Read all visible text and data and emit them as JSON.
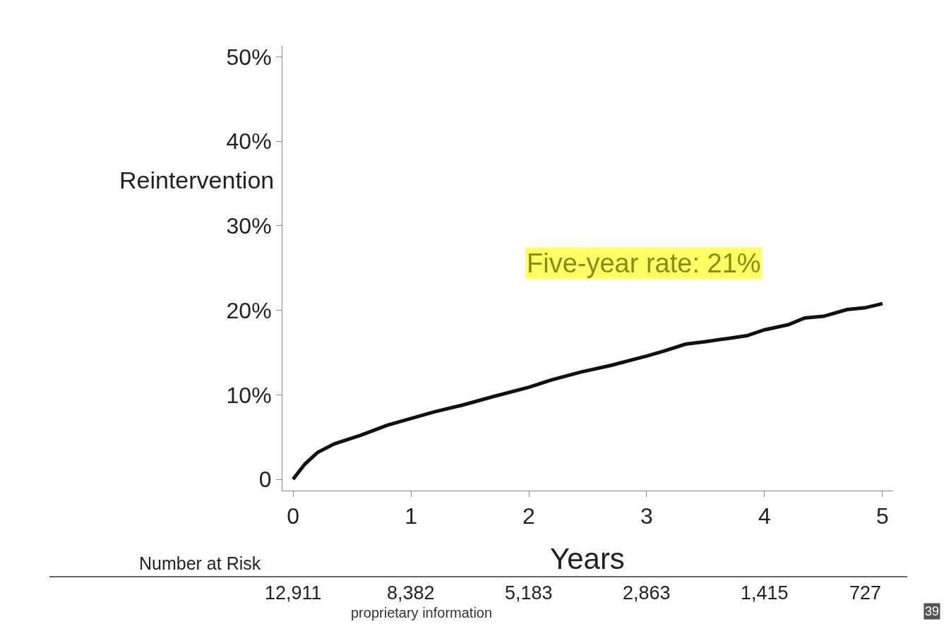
{
  "chart_data": {
    "type": "line",
    "xlabel": "Years",
    "ylabel": "Reintervention",
    "x": [
      0,
      0.1,
      0.21,
      0.35,
      0.57,
      0.8,
      1.0,
      1.2,
      1.44,
      1.7,
      2.0,
      2.2,
      2.44,
      2.7,
      3.0,
      3.15,
      3.33,
      3.5,
      3.7,
      3.85,
      4.0,
      4.2,
      4.34,
      4.5,
      4.7,
      4.85,
      5.0
    ],
    "series": [
      {
        "color": "#111111",
        "values": [
          0,
          1.8,
          3.2,
          4.2,
          5.2,
          6.4,
          7.2,
          8.0,
          8.8,
          9.8,
          10.9,
          11.8,
          12.7,
          13.5,
          14.6,
          15.2,
          16.0,
          16.3,
          16.7,
          17.0,
          17.7,
          18.3,
          19.1,
          19.3,
          20.1,
          20.3,
          20.8
        ]
      }
    ],
    "xlim": [
      -0.09,
      5.09
    ],
    "xticks": [
      0,
      1,
      2,
      3,
      4,
      5
    ],
    "ylim": [
      -1.33,
      51.3
    ],
    "yticks": [
      0,
      {
        "value": 10,
        "label": "10%"
      },
      {
        "value": 20,
        "label": "20%"
      },
      {
        "value": 30,
        "label": "30%"
      },
      {
        "value": 40,
        "label": "40%"
      },
      {
        "value": 50,
        "label": "50%"
      }
    ],
    "legend": false,
    "marker": "none",
    "line_style": "solid",
    "annotations": [
      "Five-year rate: 21%",
      "Number at Risk",
      "12,911",
      "8,382",
      "5,183",
      "2,863",
      "1,415",
      "727",
      "proprietary information",
      "39"
    ]
  }
}
